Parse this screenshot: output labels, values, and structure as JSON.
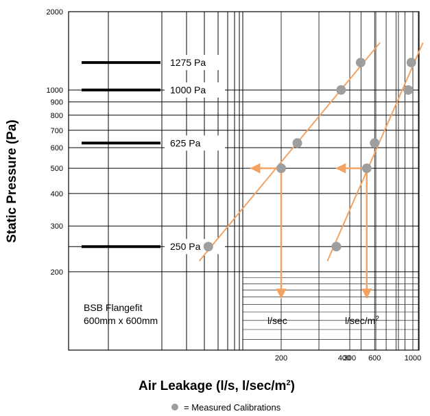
{
  "chart_data": {
    "type": "line",
    "ylabel": "Static Pressure (Pa)",
    "xlabel_main": "Air Leakage (l/s, l/sec/m",
    "xlabel_sup": "2",
    "xlabel_close": ")",
    "yscale": "log",
    "ylim": [
      100,
      2000
    ],
    "yticks": [
      {
        "value": 2000,
        "label": "2000"
      },
      {
        "value": 1000,
        "label": "1000"
      },
      {
        "value": 900,
        "label": "900"
      },
      {
        "value": 800,
        "label": "800"
      },
      {
        "value": 700,
        "label": "700"
      },
      {
        "value": 600,
        "label": "600"
      },
      {
        "value": 500,
        "label": "500"
      },
      {
        "value": 400,
        "label": "400"
      },
      {
        "value": 300,
        "label": "300"
      },
      {
        "value": 200,
        "label": "200"
      }
    ],
    "xticks": [
      {
        "value": 200,
        "label": "200",
        "axis": "l/sec"
      },
      {
        "value": 300,
        "label": "300",
        "axis": "l/sec"
      },
      {
        "value": 400,
        "label": "400",
        "axis": "l/sec/m2"
      },
      {
        "value": 600,
        "label": "600",
        "axis": "l/sec/m2"
      },
      {
        "value": 1000,
        "label": "1000",
        "axis": "l/sec/m2"
      }
    ],
    "pressure_levels": [
      {
        "value": 1275,
        "label": "1275 Pa"
      },
      {
        "value": 1000,
        "label": "1000 Pa"
      },
      {
        "value": 625,
        "label": "625 Pa"
      },
      {
        "value": 250,
        "label": "250 Pa"
      }
    ],
    "series": [
      {
        "name": "l/sec",
        "points": [
          {
            "x": 130,
            "y": 250
          },
          {
            "x": 200,
            "y": 500
          },
          {
            "x": 220,
            "y": 625
          },
          {
            "x": 285,
            "y": 1000
          },
          {
            "x": 320,
            "y": 1275
          }
        ],
        "readout": {
          "x": 200,
          "y": 500
        }
      },
      {
        "name": "l/sec/m2",
        "points": [
          {
            "x": 360,
            "y": 250
          },
          {
            "x": 540,
            "y": 500
          },
          {
            "x": 600,
            "y": 625
          },
          {
            "x": 940,
            "y": 1000
          },
          {
            "x": 980,
            "y": 1275
          }
        ],
        "readout": {
          "x": 540,
          "y": 500
        }
      }
    ],
    "annotations": {
      "product_line1": "BSB Flangefit",
      "product_line2": "600mm x 600mm",
      "unit1_label": "l/sec",
      "unit2_main": "l/sec/m",
      "unit2_sup": "2"
    },
    "legend": {
      "text": "= Measured Calibrations"
    },
    "colors": {
      "curve": "#f4a261",
      "point": "#9e9e9e",
      "grid": "#000000"
    }
  }
}
